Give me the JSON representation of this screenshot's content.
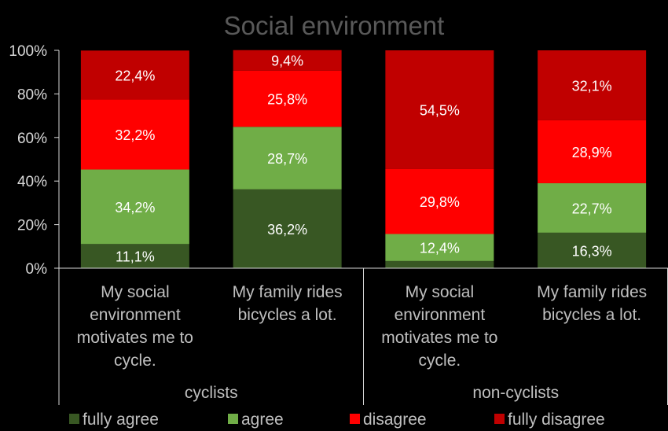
{
  "chart_data": {
    "type": "bar",
    "stacked": true,
    "title": "Social environment",
    "xlabel": "",
    "ylabel": "",
    "ylim": [
      0,
      100
    ],
    "y_ticks": [
      "0%",
      "20%",
      "40%",
      "60%",
      "80%",
      "100%"
    ],
    "grid": false,
    "legend_position": "bottom",
    "groups": [
      {
        "name": "cyclists",
        "categories": [
          "My social environment motivates me to cycle.",
          "My family rides bicycles a lot."
        ]
      },
      {
        "name": "non-cyclists",
        "categories": [
          "My social environment motivates me to cycle.",
          "My family rides bicycles a lot."
        ]
      }
    ],
    "categories": [
      "My social environment motivates me to cycle.",
      "My family rides bicycles a lot.",
      "My social environment motivates me to cycle.",
      "My family rides bicycles a lot."
    ],
    "category_lines": [
      [
        "My social",
        "environment",
        "motivates me to",
        "cycle."
      ],
      [
        "My family rides",
        "bicycles a lot."
      ],
      [
        "My social",
        "environment",
        "motivates me to",
        "cycle."
      ],
      [
        "My family rides",
        "bicycles a lot."
      ]
    ],
    "series": [
      {
        "name": "fully agree",
        "color": "#385723",
        "values": [
          11.1,
          36.2,
          3.3,
          16.3
        ],
        "labels": [
          "11,1%",
          "36,2%",
          "",
          "16,3%"
        ]
      },
      {
        "name": "agree",
        "color": "#70ad47",
        "values": [
          34.2,
          28.7,
          12.4,
          22.7
        ],
        "labels": [
          "34,2%",
          "28,7%",
          "12,4%",
          "22,7%"
        ]
      },
      {
        "name": "disagree",
        "color": "#ff0000",
        "values": [
          32.2,
          25.8,
          29.8,
          28.9
        ],
        "labels": [
          "32,2%",
          "25,8%",
          "29,8%",
          "28,9%"
        ]
      },
      {
        "name": "fully disagree",
        "color": "#c00000",
        "values": [
          22.4,
          9.4,
          54.5,
          32.1
        ],
        "labels": [
          "22,4%",
          "9,4%",
          "54,5%",
          "32,1%"
        ]
      }
    ],
    "colors": {
      "background": "#000000",
      "text": "#d9d9d9",
      "title": "#595959",
      "label": "#ffffff",
      "axis": "#d9d9d9"
    }
  }
}
